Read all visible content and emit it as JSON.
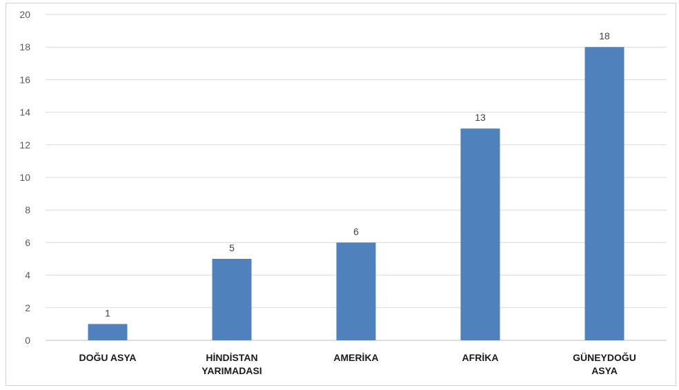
{
  "chart_data": {
    "type": "bar",
    "categories": [
      [
        "DOĞU ASYA"
      ],
      [
        "HİNDİSTAN",
        "YARIMADASI"
      ],
      [
        "AMERİKA"
      ],
      [
        "AFRİKA"
      ],
      [
        "GÜNEYDOĞU",
        "ASYA"
      ]
    ],
    "values": [
      1,
      5,
      6,
      13,
      18
    ],
    "yticks": [
      "0",
      "2",
      "4",
      "6",
      "8",
      "10",
      "12",
      "14",
      "16",
      "18",
      "20"
    ],
    "ylim": [
      0,
      20
    ],
    "grid": true,
    "bar_color": "#4f81bd"
  }
}
